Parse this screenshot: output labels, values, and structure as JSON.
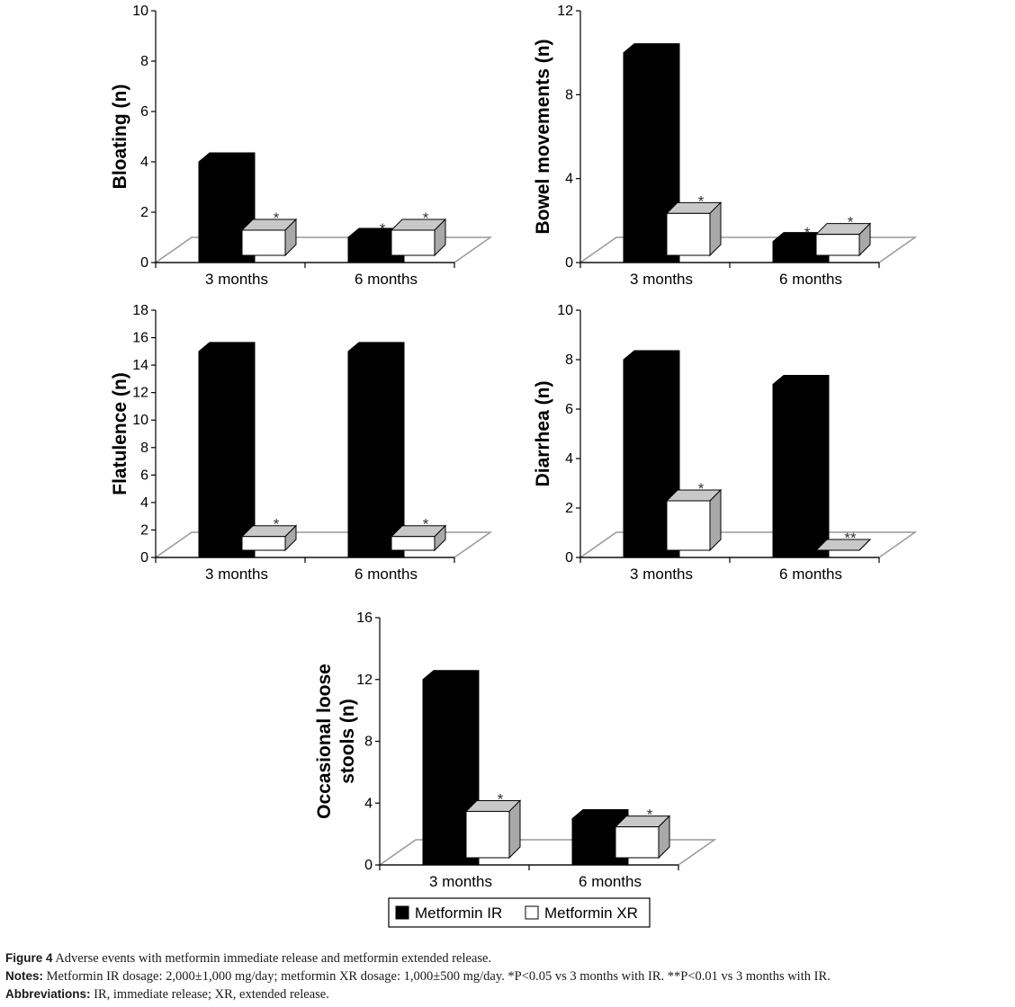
{
  "chart_data": [
    {
      "type": "bar",
      "categories": [
        "3 months",
        "6 months"
      ],
      "ylabel": [
        "Bloating (n)"
      ],
      "ylim": [
        0,
        10
      ],
      "yticks": [
        "0",
        "2",
        "4",
        "6",
        "8",
        "10"
      ],
      "series": [
        {
          "name": "Metformin IR",
          "values": [
            4,
            1
          ]
        },
        {
          "name": "Metformin XR",
          "values": [
            1,
            1
          ]
        }
      ],
      "annotations": [
        {
          "series": "Metformin XR",
          "category": "3 months",
          "text": "*"
        },
        {
          "series": "Metformin IR",
          "category": "6 months",
          "text": "*"
        },
        {
          "series": "Metformin XR",
          "category": "6 months",
          "text": "*"
        }
      ]
    },
    {
      "type": "bar",
      "categories": [
        "3 months",
        "6 months"
      ],
      "ylabel": [
        "Bowel movements (n)"
      ],
      "ylim": [
        0,
        12
      ],
      "yticks": [
        "0",
        "4",
        "8",
        "12"
      ],
      "series": [
        {
          "name": "Metformin IR",
          "values": [
            10,
            1
          ]
        },
        {
          "name": "Metformin XR",
          "values": [
            2,
            1
          ]
        }
      ],
      "annotations": [
        {
          "series": "Metformin XR",
          "category": "3 months",
          "text": "*"
        },
        {
          "series": "Metformin IR",
          "category": "6 months",
          "text": "*"
        },
        {
          "series": "Metformin XR",
          "category": "6 months",
          "text": "*"
        }
      ]
    },
    {
      "type": "bar",
      "categories": [
        "3 months",
        "6 months"
      ],
      "ylabel": [
        "Flatulence (n)"
      ],
      "ylim": [
        0,
        18
      ],
      "yticks": [
        "0",
        "2",
        "4",
        "6",
        "8",
        "10",
        "12",
        "14",
        "16",
        "18"
      ],
      "series": [
        {
          "name": "Metformin IR",
          "values": [
            15,
            15
          ]
        },
        {
          "name": "Metformin XR",
          "values": [
            1,
            1
          ]
        }
      ],
      "annotations": [
        {
          "series": "Metformin XR",
          "category": "3 months",
          "text": "*"
        },
        {
          "series": "Metformin XR",
          "category": "6 months",
          "text": "*"
        }
      ]
    },
    {
      "type": "bar",
      "categories": [
        "3 months",
        "6 months"
      ],
      "ylabel": [
        "Diarrhea (n)"
      ],
      "ylim": [
        0,
        10
      ],
      "yticks": [
        "0",
        "2",
        "4",
        "6",
        "8",
        "10"
      ],
      "series": [
        {
          "name": "Metformin IR",
          "values": [
            8,
            7
          ]
        },
        {
          "name": "Metformin XR",
          "values": [
            2,
            0
          ]
        }
      ],
      "annotations": [
        {
          "series": "Metformin XR",
          "category": "3 months",
          "text": "*"
        },
        {
          "series": "Metformin XR",
          "category": "6 months",
          "text": "**"
        }
      ]
    },
    {
      "type": "bar",
      "categories": [
        "3 months",
        "6 months"
      ],
      "ylabel": [
        "Occasional loose",
        "stools (n)"
      ],
      "ylim": [
        0,
        16
      ],
      "yticks": [
        "0",
        "4",
        "8",
        "12",
        "16"
      ],
      "series": [
        {
          "name": "Metformin IR",
          "values": [
            12,
            3
          ]
        },
        {
          "name": "Metformin XR",
          "values": [
            3,
            2
          ]
        }
      ],
      "annotations": [
        {
          "series": "Metformin XR",
          "category": "3 months",
          "text": "*"
        },
        {
          "series": "Metformin XR",
          "category": "6 months",
          "text": "*"
        }
      ]
    }
  ],
  "legend": {
    "items": [
      {
        "label": "Metformin IR",
        "color": "#000000"
      },
      {
        "label": "Metformin XR",
        "color": "#ffffff"
      }
    ]
  },
  "colors": {
    "ir": "#000000",
    "xr_front": "#ffffff",
    "xr_side": "#a9a9a9",
    "xr_top": "#c8c8c8",
    "floor": "#999999"
  },
  "caption": {
    "figure_label": "Figure 4",
    "figure_text": " Adverse events with metformin immediate release and metformin extended release.",
    "notes_label": "Notes:",
    "notes_text": " Metformin IR dosage: 2,000±1,000 mg/day; metformin XR dosage: 1,000±500 mg/day. *P<0.05 vs 3 months with IR. **P<0.01 vs 3 months with IR.",
    "abbr_label": "Abbreviations:",
    "abbr_text": " IR, immediate release; XR, extended release."
  }
}
